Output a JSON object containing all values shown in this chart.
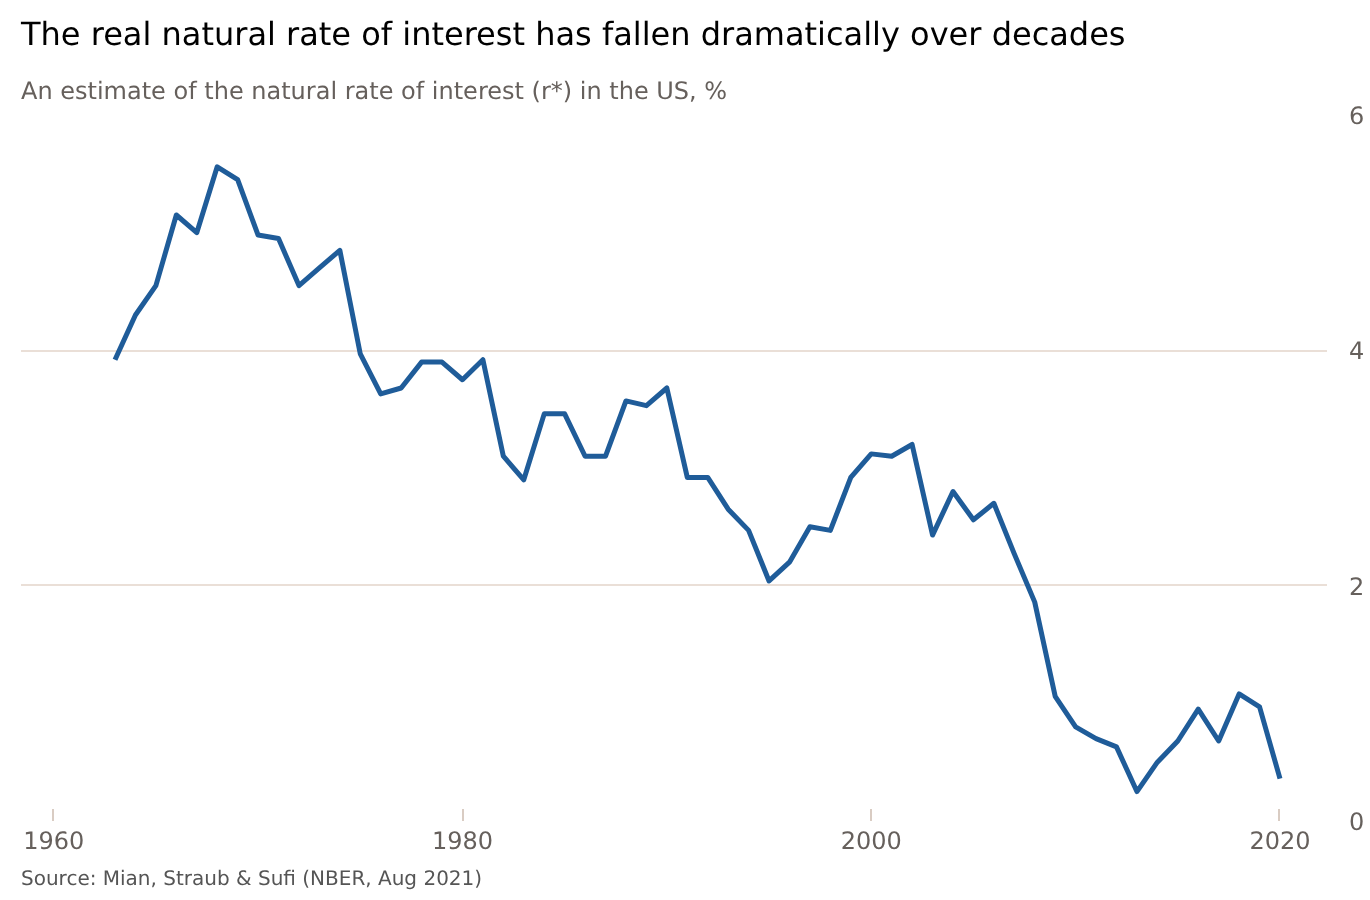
{
  "chart_data": {
    "type": "line",
    "title": "The real natural rate of interest has fallen dramatically over decades",
    "subtitle": "An estimate of the natural rate of interest (r*) in the US, %",
    "annotations": [
      "Source: Mian, Straub & Sufi (NBER, Aug 2021)"
    ],
    "x": [
      1963,
      1964,
      1965,
      1966,
      1967,
      1968,
      1969,
      1970,
      1971,
      1972,
      1973,
      1974,
      1975,
      1976,
      1977,
      1978,
      1979,
      1980,
      1981,
      1982,
      1983,
      1984,
      1985,
      1986,
      1987,
      1988,
      1989,
      1990,
      1991,
      1992,
      1993,
      1994,
      1995,
      1996,
      1997,
      1998,
      1999,
      2000,
      2001,
      2002,
      2003,
      2004,
      2005,
      2006,
      2007,
      2008,
      2009,
      2010,
      2011,
      2012,
      2013,
      2014,
      2015,
      2016,
      2017,
      2018,
      2019,
      2020
    ],
    "series": [
      {
        "color": "#1f5c99",
        "values": [
          3.92,
          4.3,
          4.55,
          5.15,
          5.0,
          5.56,
          5.45,
          4.98,
          4.95,
          4.55,
          4.7,
          4.85,
          3.97,
          3.63,
          3.68,
          3.9,
          3.9,
          3.75,
          3.92,
          3.1,
          2.9,
          3.46,
          3.46,
          3.1,
          3.1,
          3.57,
          3.53,
          3.68,
          2.92,
          2.92,
          2.65,
          2.47,
          2.04,
          2.2,
          2.5,
          2.47,
          2.92,
          3.12,
          3.1,
          3.2,
          2.43,
          2.8,
          2.56,
          2.7,
          2.27,
          1.86,
          1.06,
          0.8,
          0.7,
          0.63,
          0.25,
          0.5,
          0.68,
          0.95,
          0.68,
          1.08,
          0.97,
          0.36
        ]
      }
    ],
    "xlim": [
      1958.4,
      2022.3
    ],
    "ylim": [
      0,
      6
    ],
    "xticks": [
      1960,
      1980,
      2000,
      2020
    ],
    "yticks": [
      0,
      2,
      4,
      6
    ],
    "grid": "y",
    "marker": "none",
    "line_style": "solid"
  }
}
